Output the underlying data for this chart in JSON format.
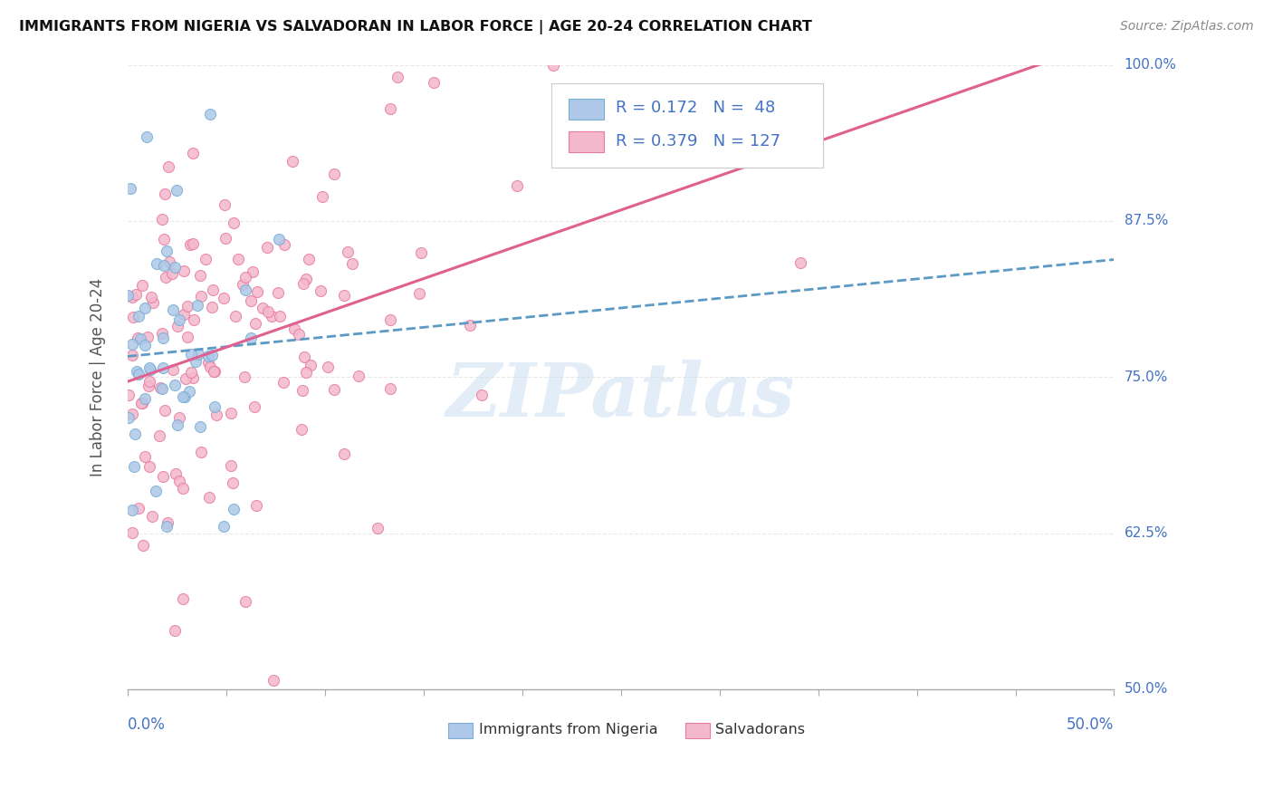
{
  "title": "IMMIGRANTS FROM NIGERIA VS SALVADORAN IN LABOR FORCE | AGE 20-24 CORRELATION CHART",
  "source": "Source: ZipAtlas.com",
  "legend_label1": "Immigrants from Nigeria",
  "legend_label2": "Salvadorans",
  "r_nigeria": 0.172,
  "n_nigeria": 48,
  "r_salvador": 0.379,
  "n_salvador": 127,
  "color_nigeria_fill": "#adc8e8",
  "color_nigeria_edge": "#7aaed4",
  "color_salvador_fill": "#f4b8cc",
  "color_salvador_edge": "#e87ca0",
  "color_nigeria_line": "#5b9ac4",
  "color_salvador_line": "#e06090",
  "xlim": [
    0.0,
    0.5
  ],
  "ylim": [
    0.5,
    1.0
  ],
  "background_color": "#ffffff",
  "grid_color": "#e8e8e8",
  "watermark_text": "ZIPatlas",
  "watermark_color": "#c8ddf0"
}
